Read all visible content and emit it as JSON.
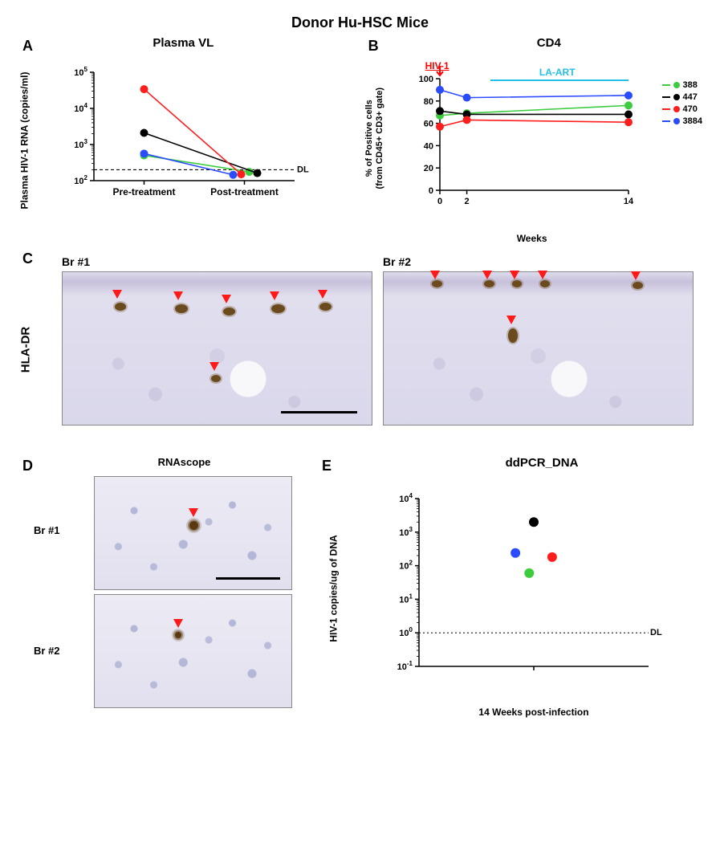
{
  "figure_title": "Donor Hu-HSC Mice",
  "legend": {
    "items": [
      {
        "id": "388",
        "color": "#3dcc3d"
      },
      {
        "id": "447",
        "color": "#000000"
      },
      {
        "id": "470",
        "color": "#ff1e1e"
      },
      {
        "id": "3884",
        "color": "#2b4bff"
      }
    ]
  },
  "panelA": {
    "label": "A",
    "title": "Plasma VL",
    "ylabel": "Plasma HIV-1 RNA (copies/ml)",
    "yscale": "log",
    "ylim": [
      100,
      100000
    ],
    "yticks": [
      100,
      1000,
      10000,
      100000
    ],
    "ytick_labels": [
      "10^2",
      "10^3",
      "10^4",
      "10^5"
    ],
    "categories": [
      "Pre-treatment",
      "Post-treatment"
    ],
    "dl_value": 200,
    "dl_label": "DL",
    "series": [
      {
        "id": "388",
        "color": "#3dcc3d",
        "values": [
          500,
          175
        ]
      },
      {
        "id": "447",
        "color": "#000000",
        "values": [
          2100,
          162
        ]
      },
      {
        "id": "470",
        "color": "#ff1e1e",
        "values": [
          34000,
          150
        ]
      },
      {
        "id": "3884",
        "color": "#2b4bff",
        "values": [
          560,
          145
        ]
      }
    ],
    "marker_size": 5,
    "line_width": 1.6
  },
  "panelB": {
    "label": "B",
    "title": "CD4",
    "ylabel_line1": "% of Positive cells",
    "ylabel_line2": "(from CD45+ CD3+ gate)",
    "xlabel": "Weeks",
    "ylim": [
      0,
      100
    ],
    "yticks": [
      0,
      20,
      40,
      60,
      80,
      100
    ],
    "xvals": [
      0,
      2,
      14
    ],
    "annotations": {
      "hiv": {
        "text": "HIV-1",
        "at_x": 0
      },
      "art": {
        "text": "LA-ART",
        "from_x": 2,
        "to_x": 14
      }
    },
    "series": [
      {
        "id": "388",
        "color": "#3dcc3d",
        "values": [
          67,
          69,
          76
        ]
      },
      {
        "id": "447",
        "color": "#000000",
        "values": [
          71,
          68,
          68
        ]
      },
      {
        "id": "470",
        "color": "#ff1e1e",
        "values": [
          57,
          63,
          61
        ]
      },
      {
        "id": "3884",
        "color": "#2b4bff",
        "values": [
          90,
          83,
          85
        ]
      }
    ],
    "marker_size": 5,
    "line_width": 1.6
  },
  "panelC": {
    "label": "C",
    "side_label": "HLA-DR",
    "images": [
      {
        "label": "Br #1",
        "arrowheads": 6,
        "scalebar": true
      },
      {
        "label": "Br #2",
        "arrowheads": 6,
        "scalebar": false
      }
    ],
    "arrow_color": "#ff1a1a",
    "stain_color": "#6b4a1e",
    "bg_color": "#e3e1ef"
  },
  "panelD": {
    "label": "D",
    "title": "RNAscope",
    "images": [
      {
        "label": "Br #1",
        "dotspot": true,
        "arrowhead": true,
        "scalebar": true
      },
      {
        "label": "Br #2",
        "dotspot": true,
        "arrowhead": true,
        "scalebar": false
      }
    ]
  },
  "panelE": {
    "label": "E",
    "title": "ddPCR_DNA",
    "ylabel": "HIV-1 copies/ug of DNA",
    "xlabel": "14 Weeks post-infection",
    "yscale": "log",
    "ylim": [
      0.1,
      10000
    ],
    "yticks": [
      0.1,
      1,
      10,
      100,
      1000,
      10000
    ],
    "ytick_labels": [
      "10^-1",
      "10^0",
      "10^1",
      "10^2",
      "10^3",
      "10^4"
    ],
    "dl_value": 1,
    "dl_label": "DL",
    "points": [
      {
        "id": "447",
        "color": "#000000",
        "value": 2000
      },
      {
        "id": "3884",
        "color": "#2b4bff",
        "value": 240
      },
      {
        "id": "470",
        "color": "#ff1e1e",
        "value": 180
      },
      {
        "id": "388",
        "color": "#3dcc3d",
        "value": 60
      }
    ],
    "x_jitter": [
      0.5,
      0.42,
      0.58,
      0.48
    ],
    "marker_size": 6
  }
}
